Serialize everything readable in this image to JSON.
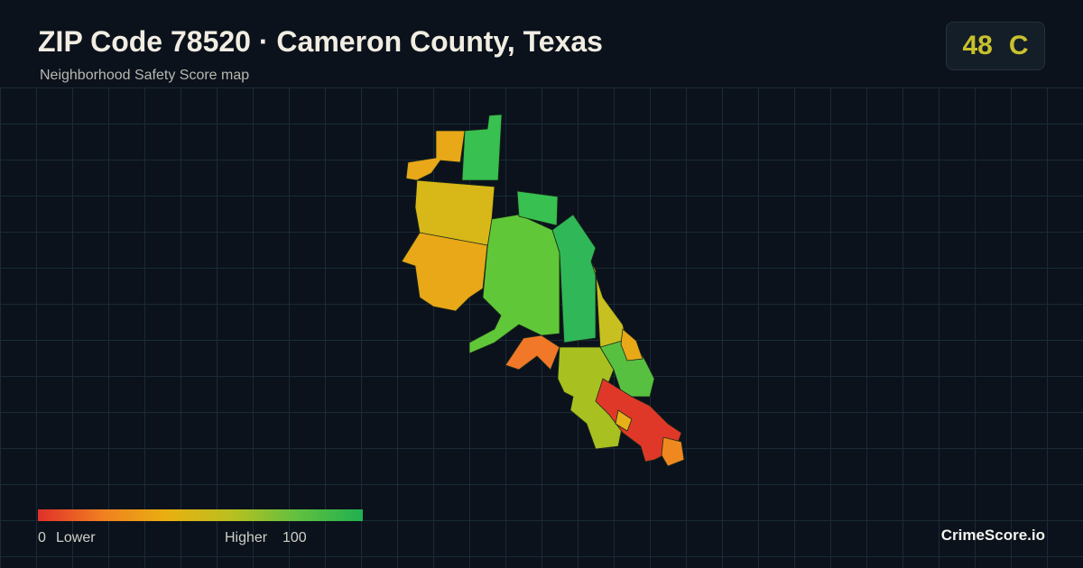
{
  "header": {
    "title": "ZIP Code 78520 · Cameron County, Texas",
    "subtitle": "Neighborhood Safety Score map"
  },
  "badge": {
    "score": "48",
    "grade": "C"
  },
  "legend": {
    "min": "0",
    "min_label": "Lower",
    "max_label": "Higher",
    "max": "100"
  },
  "footer": {
    "brand": "CrimeScore.io"
  }
}
